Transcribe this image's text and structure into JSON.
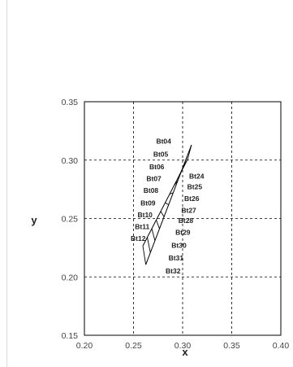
{
  "chart_data": {
    "type": "scatter",
    "title": "",
    "xlabel": "x",
    "ylabel": "y",
    "xlim": [
      0.2,
      0.4
    ],
    "ylim": [
      0.15,
      0.35
    ],
    "x_ticks": [
      "0.20",
      "0.25",
      "0.30",
      "0.35",
      "0.40"
    ],
    "y_ticks": [
      "0.15",
      "0.20",
      "0.25",
      "0.30",
      "0.35"
    ],
    "grid": true,
    "grid_style": "dashed",
    "legend": "none",
    "line_color": "#000000",
    "left_labels": [
      {
        "name": "Bt04",
        "x": 0.29,
        "y": 0.314
      },
      {
        "name": "Bt05",
        "x": 0.287,
        "y": 0.303
      },
      {
        "name": "Bt06",
        "x": 0.283,
        "y": 0.292
      },
      {
        "name": "Bt07",
        "x": 0.28,
        "y": 0.282
      },
      {
        "name": "Bt08",
        "x": 0.277,
        "y": 0.272
      },
      {
        "name": "Bt09",
        "x": 0.274,
        "y": 0.261
      },
      {
        "name": "Bt10",
        "x": 0.271,
        "y": 0.251
      },
      {
        "name": "Bt11",
        "x": 0.268,
        "y": 0.241
      },
      {
        "name": "Bt12",
        "x": 0.264,
        "y": 0.231
      }
    ],
    "right_labels": [
      {
        "name": "Bt24",
        "x": 0.305,
        "y": 0.284
      },
      {
        "name": "Bt25",
        "x": 0.303,
        "y": 0.275
      },
      {
        "name": "Bt26",
        "x": 0.3,
        "y": 0.265
      },
      {
        "name": "Bt27",
        "x": 0.297,
        "y": 0.255
      },
      {
        "name": "Bt28",
        "x": 0.294,
        "y": 0.246
      },
      {
        "name": "Bt29",
        "x": 0.291,
        "y": 0.236
      },
      {
        "name": "Bt30",
        "x": 0.287,
        "y": 0.225
      },
      {
        "name": "Bt31",
        "x": 0.284,
        "y": 0.214
      },
      {
        "name": "Bt32",
        "x": 0.281,
        "y": 0.203
      }
    ],
    "mesh": {
      "left_edge": [
        [
          0.2595,
          0.2265
        ],
        [
          0.305,
          0.3005
        ]
      ],
      "right_edge": [
        [
          0.2625,
          0.2105
        ],
        [
          0.309,
          0.313
        ]
      ],
      "rungs": 10
    }
  }
}
